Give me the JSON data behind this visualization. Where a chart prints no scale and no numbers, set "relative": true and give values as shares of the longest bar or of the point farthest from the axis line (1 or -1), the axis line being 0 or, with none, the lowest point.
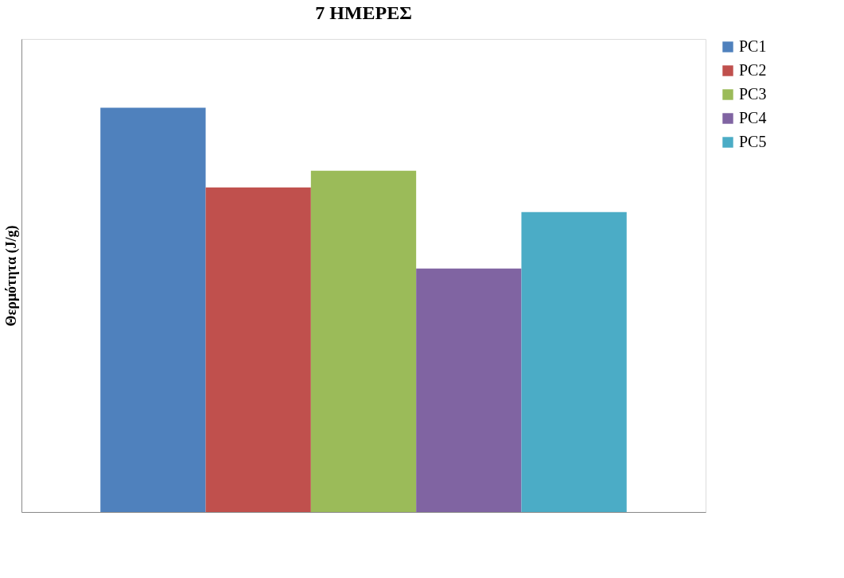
{
  "chart_data": {
    "type": "bar",
    "title": "7 ΗΜΕΡΕΣ",
    "ylabel": "Θερμότητα (J/g)",
    "relative": true,
    "categories": [
      null
    ],
    "legend": "right",
    "grid": false,
    "series": [
      {
        "name": "PC1",
        "color": "#4f81bd",
        "values": [
          1
        ]
      },
      {
        "name": "PC2",
        "color": "#c0504d",
        "values": [
          0.803
        ]
      },
      {
        "name": "PC3",
        "color": "#9bbb59",
        "values": [
          0.844
        ]
      },
      {
        "name": "PC4",
        "color": "#8064a2",
        "values": [
          0.602
        ]
      },
      {
        "name": "PC5",
        "color": "#4bacc6",
        "values": [
          0.742
        ]
      }
    ]
  }
}
